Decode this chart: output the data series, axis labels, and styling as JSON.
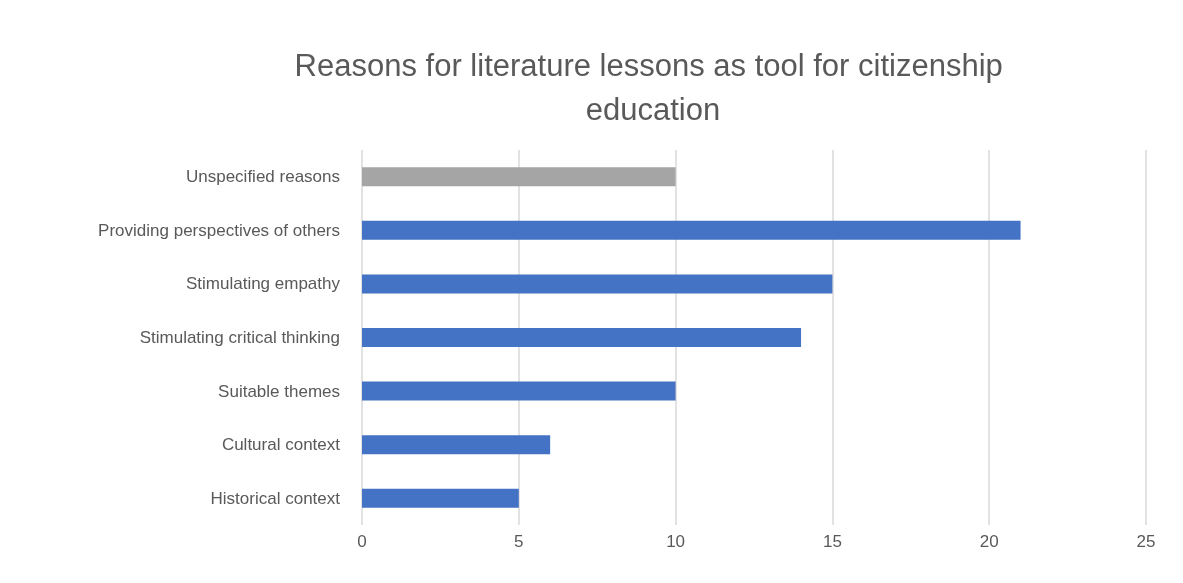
{
  "chart_data": {
    "type": "bar",
    "orientation": "horizontal",
    "title": "Reasons for literature lessons as tool for citizenship education",
    "categories": [
      "Unspecified reasons",
      "Providing perspectives of others",
      "Stimulating empathy",
      "Stimulating critical thinking",
      "Suitable themes",
      "Cultural context",
      "Historical context"
    ],
    "values": [
      10,
      21,
      15,
      14,
      10,
      6,
      5
    ],
    "colors": [
      "#a5a5a5",
      "#4472c4",
      "#4472c4",
      "#4472c4",
      "#4472c4",
      "#4472c4",
      "#4472c4"
    ],
    "xlim": [
      0,
      25
    ],
    "xticks": [
      0,
      5,
      10,
      15,
      20,
      25
    ],
    "grid": "x"
  }
}
